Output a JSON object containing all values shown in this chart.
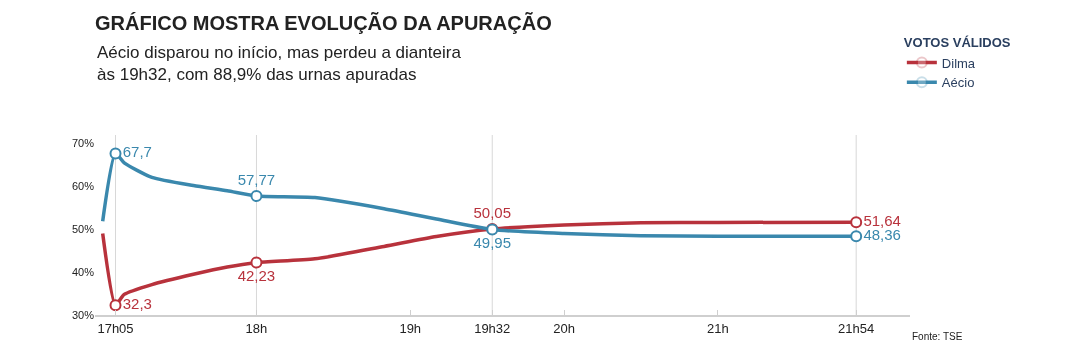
{
  "chart_data": {
    "type": "line",
    "title": "GRÁFICO MOSTRA EVOLUÇÃO DA APURAÇÃO",
    "subtitle": "Aécio disparou no início, mas perdeu a dianteira às 19h32, com 88,9% das urnas apuradas",
    "legend_title": "VOTOS VÁLIDOS",
    "annotations": [
      "Fonte: TSE"
    ],
    "x": [
      17.0,
      17.0833,
      17.14,
      17.32,
      17.59,
      17.81,
      18.0,
      18.38,
      18.83,
      19.17,
      19.5333,
      20.0,
      20.5,
      21.0,
      21.9
    ],
    "series": [
      {
        "name": "Dilma",
        "color": "#b8323c",
        "values": [
          49.0,
          32.3,
          34.8,
          37.1,
          39.5,
          41.2,
          42.23,
          43.1,
          46.0,
          48.3,
          50.05,
          51.0,
          51.5,
          51.6,
          51.64
        ],
        "value_labels": [
          null,
          "32,3",
          null,
          null,
          null,
          null,
          "42,23",
          null,
          null,
          null,
          "50,05",
          null,
          null,
          null,
          "51,64"
        ]
      },
      {
        "name": "Aécio",
        "color": "#3a88ad",
        "values": [
          51.9,
          67.7,
          65.5,
          62.1,
          60.2,
          59.0,
          57.77,
          57.4,
          54.8,
          52.4,
          49.95,
          49.0,
          48.5,
          48.4,
          48.36
        ],
        "value_labels": [
          null,
          "67,7",
          null,
          null,
          null,
          null,
          "57,77",
          null,
          null,
          null,
          "49,95",
          null,
          null,
          null,
          "48,36"
        ]
      }
    ],
    "line_style": "solid",
    "grid": false,
    "legend": "top right",
    "xlim": [
      16.95,
      22.25
    ],
    "xticks": [
      {
        "value": 17.0833,
        "label": "17h05"
      },
      {
        "value": 18,
        "label": "18h"
      },
      {
        "value": 19,
        "label": "19h"
      },
      {
        "value": 19.5333,
        "label": "19h32"
      },
      {
        "value": 20,
        "label": "20h"
      },
      {
        "value": 21,
        "label": "21h"
      },
      {
        "value": 21.9,
        "label": "21h54"
      }
    ],
    "ylim": [
      30,
      72
    ],
    "yticks": [
      {
        "value": 30,
        "label": "30%"
      },
      {
        "value": 40,
        "label": "40%"
      },
      {
        "value": 50,
        "label": "50%"
      },
      {
        "value": 60,
        "label": "60%"
      },
      {
        "value": 70,
        "label": "70%"
      }
    ],
    "ref_lines": [
      {
        "axis": "x",
        "value": 17.0833,
        "color": "#d8d8d8"
      },
      {
        "axis": "x",
        "value": 18,
        "color": "#d8d8d8"
      },
      {
        "axis": "x",
        "value": 19.5333,
        "color": "#d8d8d8"
      },
      {
        "axis": "x",
        "value": 21.9,
        "color": "#d8d8d8"
      }
    ]
  }
}
